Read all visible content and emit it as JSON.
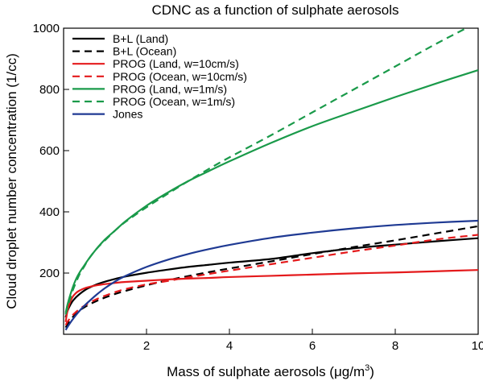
{
  "chart_data": {
    "type": "line",
    "title": "CDNC as a function of sulphate aerosols",
    "xlabel": "Mass of sulphate aerosols (μg/m³)",
    "ylabel": "Cloud droplet number concentration (1/cc)",
    "xlim": [
      0,
      10
    ],
    "ylim": [
      0,
      1000
    ],
    "xticks": [
      2,
      4,
      6,
      8,
      10
    ],
    "yticks": [
      200,
      400,
      600,
      800,
      1000
    ],
    "grid": false,
    "legend_position": "top-left",
    "x": [
      0.05,
      0.1,
      0.2,
      0.3,
      0.4,
      0.5,
      0.6,
      0.8,
      1.0,
      1.25,
      1.5,
      2.0,
      2.5,
      3.0,
      3.5,
      4.0,
      5.0,
      6.0,
      7.0,
      8.0,
      9.0,
      10.0
    ],
    "series": [
      {
        "name": "B+L (Land)",
        "color": "#000000",
        "dash": false,
        "values": [
          55,
          78,
          105,
          121,
          133,
          143,
          151,
          163,
          172,
          181,
          189,
          201,
          211,
          220,
          227,
          234,
          246,
          265,
          281,
          293,
          304,
          314
        ]
      },
      {
        "name": "B+L (Ocean)",
        "color": "#000000",
        "dash": true,
        "values": [
          22,
          34,
          53,
          67,
          79,
          88,
          96,
          109,
          120,
          132,
          142,
          160,
          176,
          190,
          203,
          215,
          238,
          262,
          285,
          307,
          330,
          353
        ]
      },
      {
        "name": "PROG (Land, w=10cm/s)",
        "color": "#e41a1c",
        "dash": false,
        "values": [
          40,
          80,
          118,
          135,
          144,
          150,
          154,
          160,
          164,
          168,
          171,
          175,
          179,
          182,
          184,
          187,
          191,
          195,
          199,
          202,
          206,
          210
        ]
      },
      {
        "name": "PROG (Ocean, w=10cm/s)",
        "color": "#e41a1c",
        "dash": true,
        "values": [
          30,
          42,
          60,
          73,
          84,
          93,
          101,
          115,
          126,
          138,
          148,
          163,
          174,
          186,
          197,
          208,
          229,
          250,
          271,
          290,
          310,
          325
        ]
      },
      {
        "name": "PROG (Land, w=1m/s)",
        "color": "#1a9a4a",
        "dash": false,
        "values": [
          70,
          100,
          145,
          180,
          205,
          225,
          245,
          280,
          310,
          340,
          370,
          420,
          462,
          500,
          533,
          565,
          625,
          680,
          728,
          775,
          820,
          863
        ]
      },
      {
        "name": "PROG (Ocean, w=1m/s)",
        "color": "#1a9a4a",
        "dash": true,
        "values": [
          65,
          90,
          135,
          170,
          200,
          222,
          245,
          280,
          307,
          340,
          368,
          415,
          458,
          500,
          540,
          578,
          650,
          725,
          800,
          875,
          950,
          1020
        ]
      },
      {
        "name": "Jones",
        "color": "#1f3a93",
        "dash": false,
        "values": [
          14,
          25,
          45,
          63,
          79,
          93,
          106,
          130,
          151,
          173,
          191,
          220,
          243,
          262,
          278,
          292,
          315,
          332,
          346,
          357,
          365,
          371
        ]
      }
    ]
  }
}
